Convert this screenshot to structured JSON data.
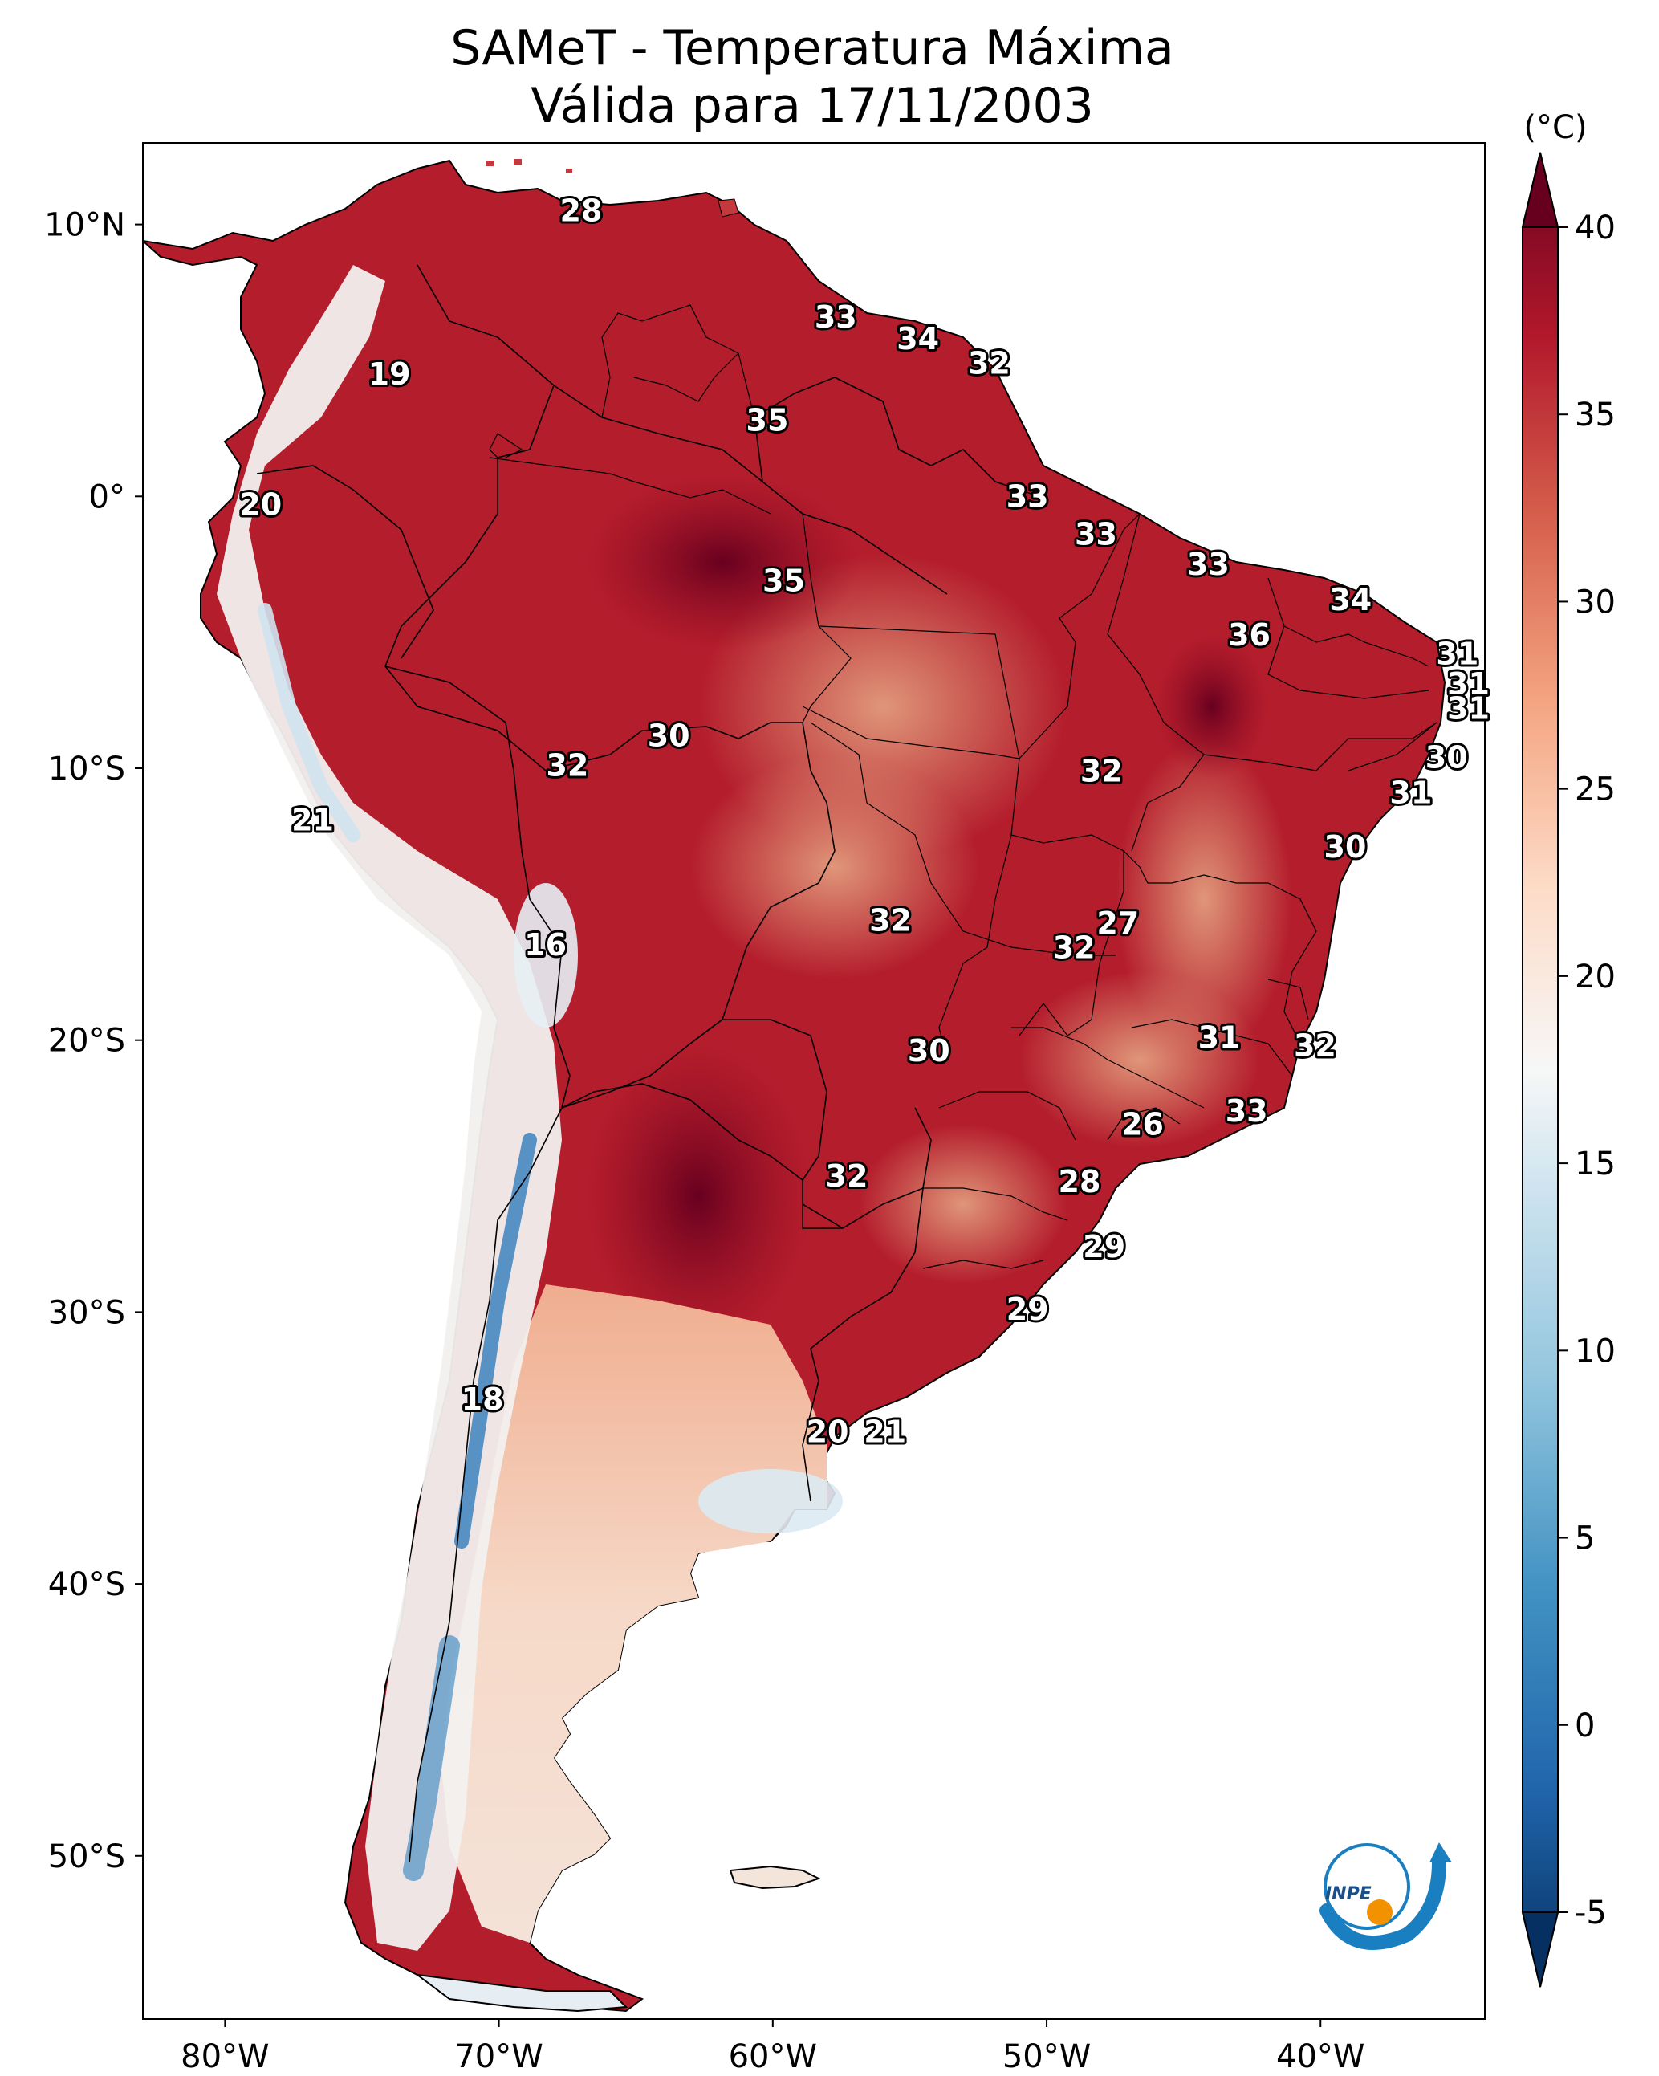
{
  "title": {
    "line1": "SAMeT - Temperatura Máxima",
    "line2": "Válida para 17/11/2003"
  },
  "map": {
    "lat_ticks": [
      {
        "value": 10,
        "label": "10°N"
      },
      {
        "value": 0,
        "label": "0°"
      },
      {
        "value": -10,
        "label": "10°S"
      },
      {
        "value": -20,
        "label": "20°S"
      },
      {
        "value": -30,
        "label": "30°S"
      },
      {
        "value": -40,
        "label": "40°S"
      },
      {
        "value": -50,
        "label": "50°S"
      }
    ],
    "lon_ticks": [
      {
        "value": -80,
        "label": "80°W"
      },
      {
        "value": -70,
        "label": "70°W"
      },
      {
        "value": -60,
        "label": "60°W"
      },
      {
        "value": -50,
        "label": "50°W"
      },
      {
        "value": -40,
        "label": "40°W"
      }
    ],
    "extent": {
      "lon_min": -83,
      "lon_max": -34,
      "lat_min": -56,
      "lat_max": 13
    },
    "contour_labels": [
      {
        "text": "28",
        "lon": -67,
        "lat": 10.5
      },
      {
        "text": "19",
        "lon": -74,
        "lat": 4.5
      },
      {
        "text": "33",
        "lon": -57.7,
        "lat": 6.6
      },
      {
        "text": "34",
        "lon": -54.7,
        "lat": 5.8
      },
      {
        "text": "32",
        "lon": -52.1,
        "lat": 4.9
      },
      {
        "text": "35",
        "lon": -60.2,
        "lat": 2.8
      },
      {
        "text": "20",
        "lon": -78.7,
        "lat": -0.3
      },
      {
        "text": "33",
        "lon": -50.7,
        "lat": 0.0
      },
      {
        "text": "33",
        "lon": -48.2,
        "lat": -1.4
      },
      {
        "text": "33",
        "lon": -44.1,
        "lat": -2.5
      },
      {
        "text": "35",
        "lon": -59.6,
        "lat": -3.1
      },
      {
        "text": "34",
        "lon": -38.9,
        "lat": -3.8
      },
      {
        "text": "36",
        "lon": -42.6,
        "lat": -5.1
      },
      {
        "text": "31",
        "lon": -35.0,
        "lat": -5.8
      },
      {
        "text": "31",
        "lon": -34.6,
        "lat": -6.9
      },
      {
        "text": "31",
        "lon": -34.6,
        "lat": -7.8
      },
      {
        "text": "30",
        "lon": -63.8,
        "lat": -8.8
      },
      {
        "text": "30",
        "lon": -35.4,
        "lat": -9.6
      },
      {
        "text": "32",
        "lon": -67.5,
        "lat": -9.9
      },
      {
        "text": "32",
        "lon": -48.0,
        "lat": -10.1
      },
      {
        "text": "31",
        "lon": -36.7,
        "lat": -10.9
      },
      {
        "text": "21",
        "lon": -76.8,
        "lat": -11.9
      },
      {
        "text": "30",
        "lon": -39.1,
        "lat": -12.9
      },
      {
        "text": "32",
        "lon": -55.7,
        "lat": -15.6
      },
      {
        "text": "27",
        "lon": -47.4,
        "lat": -15.7
      },
      {
        "text": "32",
        "lon": -49.0,
        "lat": -16.6
      },
      {
        "text": "16",
        "lon": -68.3,
        "lat": -16.5
      },
      {
        "text": "31",
        "lon": -43.7,
        "lat": -19.9
      },
      {
        "text": "30",
        "lon": -54.3,
        "lat": -20.4
      },
      {
        "text": "32",
        "lon": -40.2,
        "lat": -20.2
      },
      {
        "text": "33",
        "lon": -42.7,
        "lat": -22.6
      },
      {
        "text": "26",
        "lon": -46.5,
        "lat": -23.1
      },
      {
        "text": "32",
        "lon": -57.3,
        "lat": -25.0
      },
      {
        "text": "28",
        "lon": -48.8,
        "lat": -25.2
      },
      {
        "text": "29",
        "lon": -47.9,
        "lat": -27.6
      },
      {
        "text": "29",
        "lon": -50.7,
        "lat": -29.9
      },
      {
        "text": "18",
        "lon": -70.6,
        "lat": -33.2
      },
      {
        "text": "20",
        "lon": -58.0,
        "lat": -34.4
      },
      {
        "text": "21",
        "lon": -55.9,
        "lat": -34.4
      }
    ]
  },
  "colorbar": {
    "unit_label": "(°C)",
    "vmin": -5,
    "vmax": 40,
    "ticks": [
      {
        "value": 40,
        "label": "40"
      },
      {
        "value": 35,
        "label": "35"
      },
      {
        "value": 30,
        "label": "30"
      },
      {
        "value": 25,
        "label": "25"
      },
      {
        "value": 20,
        "label": "20"
      },
      {
        "value": 15,
        "label": "15"
      },
      {
        "value": 10,
        "label": "10"
      },
      {
        "value": 5,
        "label": "5"
      },
      {
        "value": 0,
        "label": "0"
      },
      {
        "value": -5,
        "label": "-5"
      }
    ]
  },
  "logo": {
    "text": "INPE"
  },
  "colors": {
    "hot": "#67001f",
    "warm": "#b2182b",
    "mild": "#f4a582",
    "neutral": "#f7f7f7",
    "cool": "#92c5de",
    "cold": "#053061",
    "logo_blue": "#1a7fc1",
    "logo_orange": "#f39200"
  }
}
